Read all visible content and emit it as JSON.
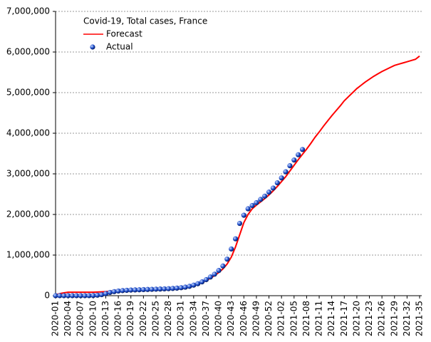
{
  "chart_data": {
    "type": "line",
    "title": "Covid-19, Total cases, France",
    "categories": [
      "2020-01",
      null,
      null,
      "2020-04",
      null,
      null,
      "2020-07",
      null,
      null,
      "2020-10",
      null,
      null,
      "2020-13",
      null,
      null,
      "2020-16",
      null,
      null,
      "2020-19",
      null,
      null,
      "2020-22",
      null,
      null,
      "2020-25",
      null,
      null,
      "2020-28",
      null,
      null,
      "2020-31",
      null,
      null,
      "2020-34",
      null,
      null,
      "2020-37",
      null,
      null,
      "2020-40",
      null,
      null,
      "2020-43",
      null,
      null,
      "2020-46",
      null,
      null,
      "2020-49",
      null,
      null,
      "2020-52",
      null,
      null,
      "2021-02",
      null,
      null,
      "2021-05",
      null,
      null,
      "2021-08",
      null,
      null,
      "2021-11",
      null,
      null,
      "2021-14",
      null,
      null,
      "2021-17",
      null,
      null,
      "2021-20",
      null,
      null,
      "2021-23",
      null,
      null,
      "2021-26",
      null,
      null,
      "2021-29",
      null,
      null,
      "2021-32",
      null,
      null,
      "2021-35"
    ],
    "series": [
      {
        "name": "Forecast",
        "color": "#ff0000",
        "style": "line",
        "values": [
          20000,
          50000,
          70000,
          85000,
          85000,
          85000,
          85000,
          85000,
          85000,
          85000,
          90000,
          95000,
          100000,
          110000,
          125000,
          135000,
          140000,
          145000,
          150000,
          155000,
          158000,
          162000,
          166000,
          170000,
          174000,
          178000,
          183000,
          188000,
          194000,
          202000,
          212000,
          225000,
          242000,
          265000,
          295000,
          330000,
          375000,
          430000,
          495000,
          570000,
          660000,
          780000,
          950000,
          1200000,
          1500000,
          1800000,
          2000000,
          2140000,
          2230000,
          2310000,
          2390000,
          2480000,
          2580000,
          2690000,
          2810000,
          2930000,
          3070000,
          3210000,
          3350000,
          3480000,
          3610000,
          3750000,
          3900000,
          4030000,
          4170000,
          4300000,
          4430000,
          4550000,
          4670000,
          4800000,
          4900000,
          5000000,
          5100000,
          5180000,
          5260000,
          5330000,
          5400000,
          5460000,
          5520000,
          5570000,
          5620000,
          5670000,
          5700000,
          5730000,
          5760000,
          5790000,
          5820000,
          5900000
        ]
      },
      {
        "name": "Actual",
        "color": "#1a49c9",
        "style": "points",
        "values": [
          0,
          0,
          0,
          0,
          0,
          0,
          0,
          100,
          1000,
          4500,
          12000,
          25000,
          50000,
          80000,
          100000,
          115000,
          125000,
          132000,
          138000,
          142000,
          145000,
          150000,
          153000,
          157000,
          160000,
          164000,
          168000,
          172000,
          178000,
          186000,
          196000,
          210000,
          230000,
          260000,
          295000,
          340000,
          395000,
          460000,
          530000,
          620000,
          730000,
          900000,
          1150000,
          1400000,
          1780000,
          1980000,
          2140000,
          2220000,
          2290000,
          2370000,
          2450000,
          2550000,
          2650000,
          2780000,
          2900000,
          3050000,
          3200000,
          3340000,
          3470000,
          3600000,
          null,
          null,
          null,
          null,
          null,
          null,
          null,
          null,
          null,
          null,
          null,
          null,
          null,
          null,
          null,
          null,
          null,
          null,
          null,
          null,
          null,
          null,
          null,
          null,
          null,
          null,
          null,
          null
        ]
      }
    ],
    "ylim": [
      0,
      7000000
    ],
    "yticks": [
      {
        "value": 0,
        "label": "0"
      },
      {
        "value": 1000000,
        "label": "1,000,000"
      },
      {
        "value": 2000000,
        "label": "2,000,000"
      },
      {
        "value": 3000000,
        "label": "3,000,000"
      },
      {
        "value": 4000000,
        "label": "4,000,000"
      },
      {
        "value": 5000000,
        "label": "5,000,000"
      },
      {
        "value": 6000000,
        "label": "6,000,000"
      },
      {
        "value": 7000000,
        "label": "7,000,000"
      }
    ],
    "grid": true,
    "legend": "upper left"
  }
}
